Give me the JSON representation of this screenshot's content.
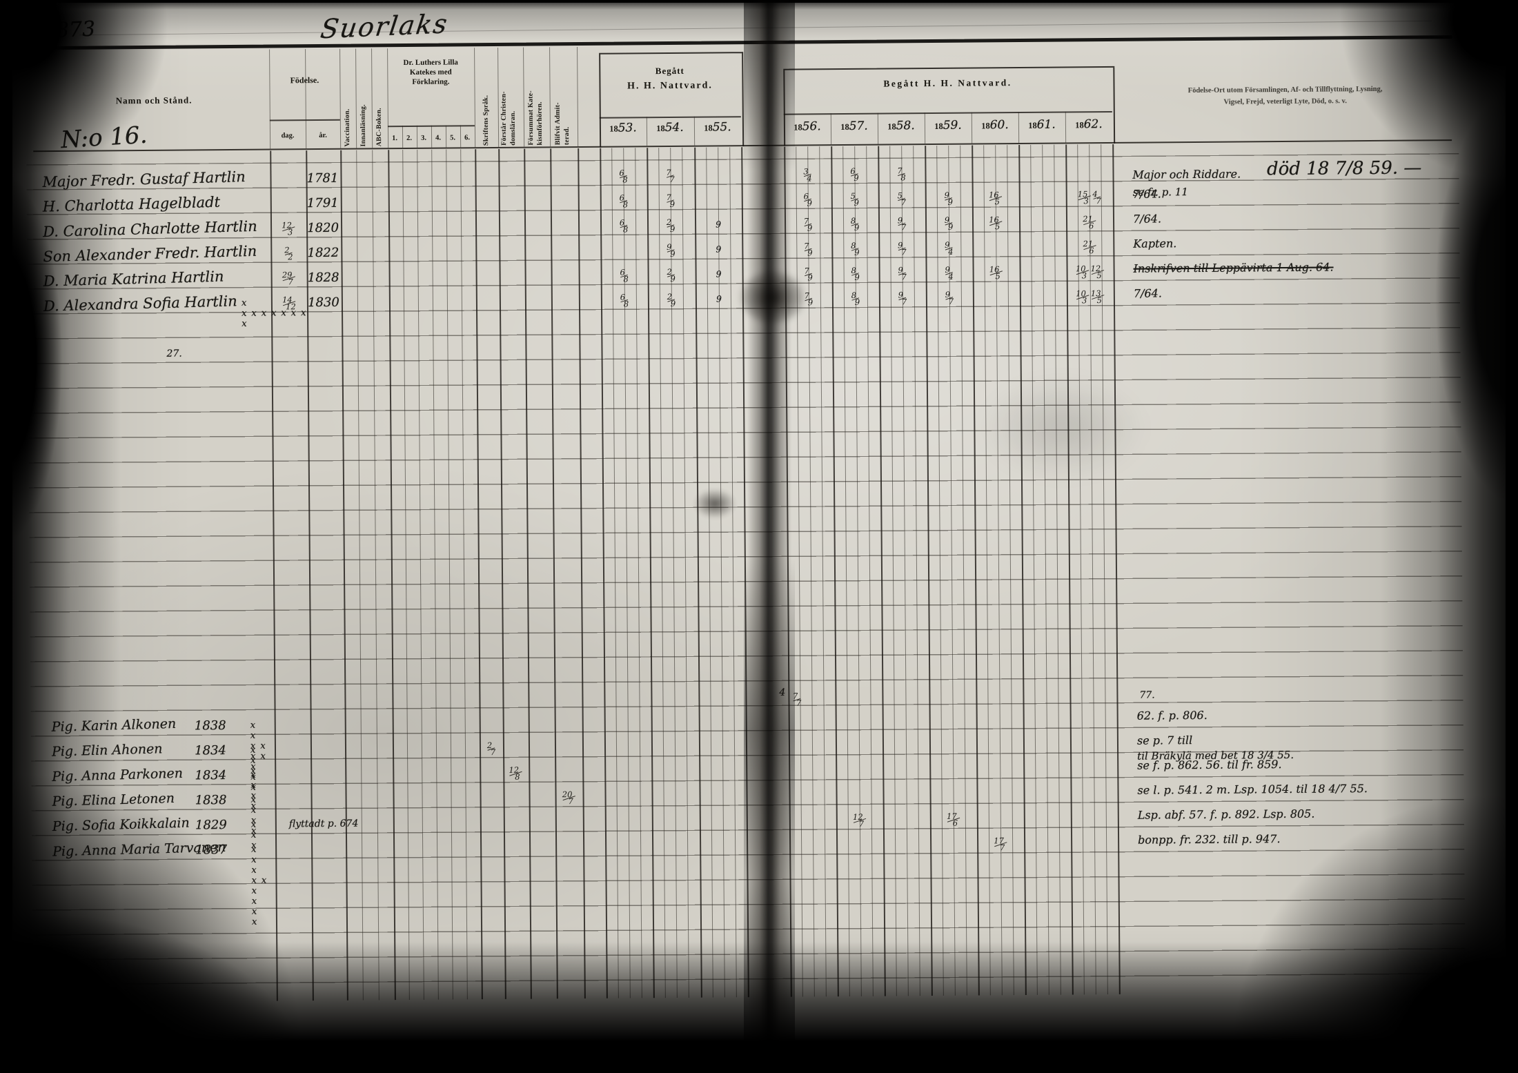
{
  "colors": {
    "paper": "#d4d1c8",
    "ink": "#1b1a16",
    "print_ink": "#17150f"
  },
  "scan": {
    "page_number": "873",
    "title": "Suorlaks",
    "household_no": "N:o 16."
  },
  "header": {
    "name_col": "Namn och Stånd.",
    "birth": "Födelse.",
    "birth_day": "dag.",
    "birth_year": "år.",
    "vaccination": "Vaccination.",
    "reading": "Innanläsning.",
    "abc": "ABC-Boken.",
    "catechism_l1": "Dr. Luthers Lilla",
    "catechism_l2": "Katekes med",
    "catechism_l3": "Förklaring.",
    "catechism_nums": [
      "1.",
      "2.",
      "3.",
      "4.",
      "5.",
      "6."
    ],
    "scripture": "Skriftens Språk.",
    "understands_l1": "Förstår Christen-",
    "understands_l2": "domsläran.",
    "missed_l1": "Försummat Kate-",
    "missed_l2": "kismförhören.",
    "admitted_l1": "Blifvit Admit-",
    "admitted_l2": "terad.",
    "communion_left_l1": "Begått",
    "communion_left_l2": "H. H. Nattvard.",
    "communion_right": "Begått H. H. Nattvard.",
    "years_left": [
      "1853.",
      "1854.",
      "1855."
    ],
    "years_right": [
      "1856.",
      "1857.",
      "1858.",
      "1859.",
      "1860.",
      "1861.",
      "1862."
    ],
    "notes_l1": "Födelse-Ort utom Församlingen, Af- och Tillflyttning, Lysning,",
    "notes_l2": "Vigsel, Frejd, veterligt Lyte, Död, o. s. v."
  },
  "records": [
    {
      "name": "Major Fredr. Gustaf Hartlin",
      "birth_day": "",
      "birth_year": "1781",
      "communion": {
        "1853": "6/8",
        "1854": "7/7",
        "1856": "3/4",
        "1857": "6/9",
        "1858": "7/8"
      },
      "note": {
        "text": "Major och Riddare.",
        "big": "död 18 7/8 59. —",
        "text2": "se fr. p. 11"
      }
    },
    {
      "name": "H. Charlotta Hagelbladt",
      "birth_day": "",
      "birth_year": "1791",
      "communion": {
        "1853": "6/8",
        "1854": "7/9",
        "1856": "6/9",
        "1857": "5/9",
        "1858": "5/7",
        "1859": "9/9",
        "1860": "16/5",
        "1862": "15/3 4/7"
      },
      "note": {
        "text": "7/64."
      }
    },
    {
      "name": "D. Carolina Charlotte Hartlin",
      "birth_day": "12/3",
      "birth_year": "1820",
      "communion": {
        "1853": "6/8",
        "1854": "2/9",
        "1855": "9",
        "1856": "7/9",
        "1857": "8/9",
        "1858": "9/7",
        "1859": "9/9",
        "1860": "16/5",
        "1862": "21/6"
      },
      "note": {
        "text": "7/64."
      }
    },
    {
      "name": "Son Alexander Fredr. Hartlin",
      "birth_day": "2/2",
      "birth_year": "1822",
      "communion": {
        "1854": "9/9",
        "1855": "9",
        "1856": "7/9",
        "1857": "8/9",
        "1858": "9/7",
        "1859": "9/4",
        "1862": "21/6"
      },
      "note": {
        "text": "Kapten."
      }
    },
    {
      "name": "D. Maria Katrina Hartlin",
      "birth_day": "29/7",
      "birth_year": "1828",
      "communion": {
        "1853": "6/8",
        "1854": "2/9",
        "1855": "9",
        "1856": "7/9",
        "1857": "8/9",
        "1858": "9/7",
        "1859": "9/4",
        "1860": "16/5",
        "1862": "10/3 12/5"
      },
      "note": {
        "text": "Inskrifven till Leppävirta 1 Aug. 64.",
        "struck": true
      }
    },
    {
      "name": "D. Alexandra Sofia Hartlin",
      "birth_day": "14/12",
      "birth_year": "1830",
      "marks": "x xxxxxxx x",
      "communion": {
        "1853": "6/8",
        "1854": "2/9",
        "1855": "9",
        "1856": "7/9",
        "1857": "8/9",
        "1858": "9/7",
        "1859": "9/7",
        "1862": "10/3 13/5"
      },
      "note": {
        "text": "7/64."
      }
    }
  ],
  "lower_records": [
    {
      "name": "Pig. Karin Alkonen",
      "birth_year": "1838",
      "marks": "x x xx xx x x x",
      "communion": {},
      "note": {
        "text": "62. f. p. 806."
      }
    },
    {
      "name": "Pig. Elin Ahonen",
      "birth_year": "1834",
      "marks": "x x x",
      "extra": [
        {
          "col": "skrift",
          "value": "2/7"
        }
      ],
      "communion": {},
      "note": {
        "text": "se p. 7 till",
        "text2": "til Bräkylä med bet 18 3/4 55."
      }
    },
    {
      "name": "Pig. Anna Parkonen",
      "birth_year": "1834",
      "marks": "x x x x",
      "extra": [
        {
          "col": "forstar",
          "value": "12/8"
        }
      ],
      "communion": {},
      "note": {
        "text": "se f. p. 862. 56. til fr. 859."
      }
    },
    {
      "name": "Pig. Elina Letonen",
      "birth_year": "1838",
      "marks": "x x x x",
      "extra": [
        {
          "col": "admitted",
          "value": "20/7"
        }
      ],
      "communion": {},
      "note": {
        "text": "se l. p. 541. 2 m. Lsp. 1054. til 18 4/7 55."
      }
    },
    {
      "name": "Pig. Sofia Koikkalain",
      "birth_year": "1829",
      "marks": "x x x",
      "katekes_note": "flyttadt p. 674",
      "communion": {
        "1857": "12/7",
        "1859": "17/6"
      },
      "note": {
        "text": "Lsp. abf. 57. f. p. 892. Lsp. 805."
      }
    },
    {
      "name": "Pig. Anna Maria Tarvanen",
      "birth_year": "1837",
      "marks": "x x x xx x x x x",
      "communion": {
        "1860": "17/7"
      },
      "note": {
        "text": "bonpp. fr. 232. till p. 947."
      }
    }
  ],
  "stray_marks": [
    {
      "text": "27."
    },
    {
      "text": "77."
    },
    {
      "text": "4"
    },
    {
      "text": "7/7"
    }
  ]
}
